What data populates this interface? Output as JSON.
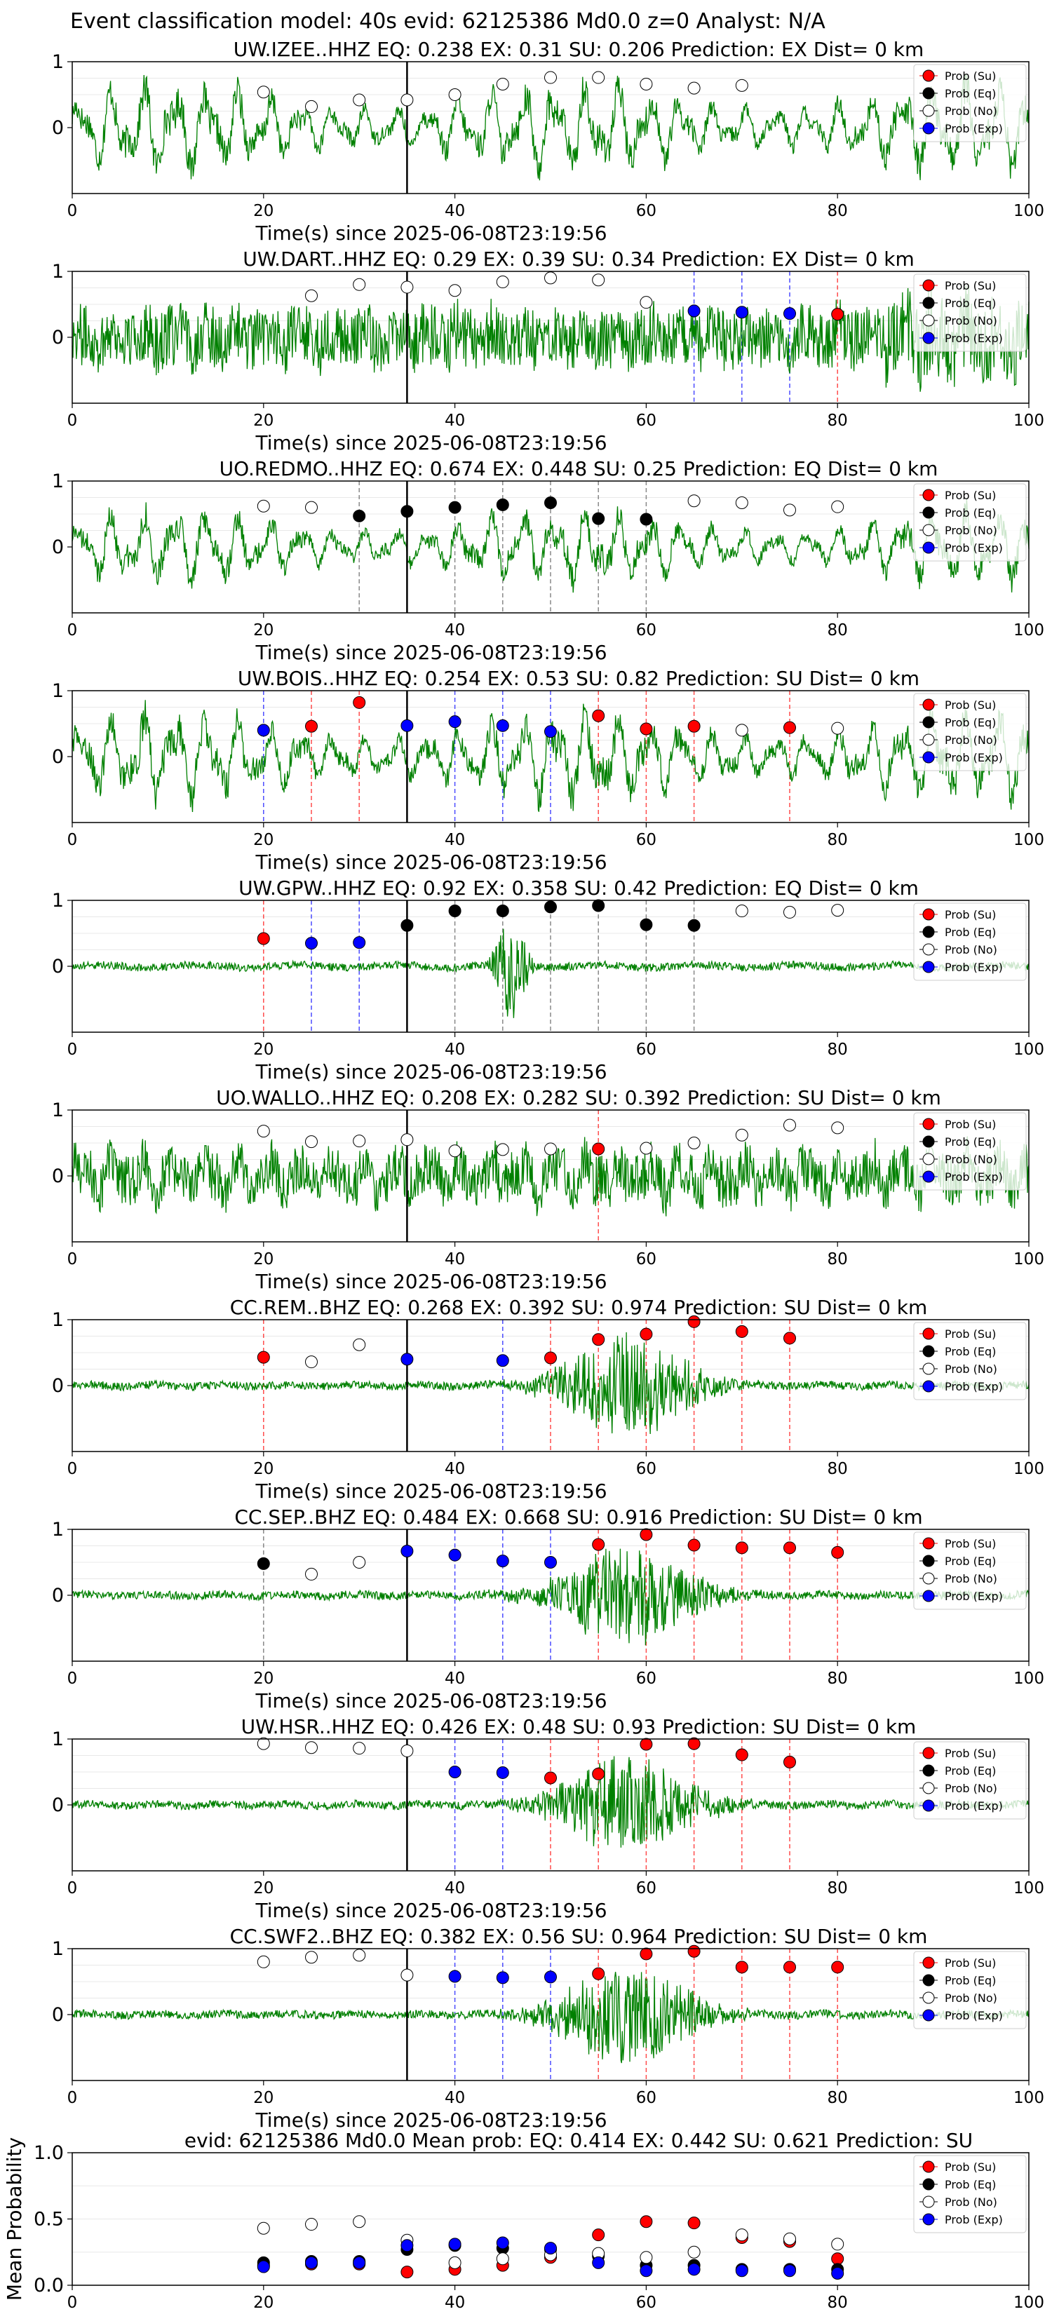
{
  "suptitle": "Event classification model: 40s evid: 62125386 Md0.0 z=0 Analyst: N/A",
  "legend_labels": [
    "Prob (Su)",
    "Prob (Eq)",
    "Prob (No)",
    "Prob (Exp)"
  ],
  "colors": {
    "su": "#ff0000",
    "eq": "#000000",
    "no": "#ffffff",
    "exp": "#0000ff",
    "wave": "#008000",
    "pick": "#000000"
  },
  "chart_data": [
    {
      "type": "scatter",
      "title": "UW.IZEE..HHZ   EQ: 0.238  EX: 0.31  SU: 0.206   Prediction: EX    Dist= 0 km",
      "xlabel": "Time(s) since 2025-06-08T23:19:56",
      "xlim": [
        0,
        100
      ],
      "ylim": [
        -1,
        1
      ],
      "x_ticks": [
        0,
        20,
        40,
        60,
        80,
        100
      ],
      "y_ticks": [
        0,
        1
      ],
      "pick_time": 35,
      "amplitude": "high",
      "trend": "low_freq",
      "points": [
        {
          "x": 20,
          "y": 0.54,
          "cls": "no"
        },
        {
          "x": 25,
          "y": 0.32,
          "cls": "no"
        },
        {
          "x": 30,
          "y": 0.42,
          "cls": "no"
        },
        {
          "x": 35,
          "y": 0.42,
          "cls": "no"
        },
        {
          "x": 40,
          "y": 0.5,
          "cls": "no"
        },
        {
          "x": 45,
          "y": 0.66,
          "cls": "no"
        },
        {
          "x": 50,
          "y": 0.76,
          "cls": "no"
        },
        {
          "x": 55,
          "y": 0.76,
          "cls": "no"
        },
        {
          "x": 60,
          "y": 0.66,
          "cls": "no"
        },
        {
          "x": 65,
          "y": 0.6,
          "cls": "no"
        },
        {
          "x": 70,
          "y": 0.64,
          "cls": "no"
        }
      ]
    },
    {
      "type": "scatter",
      "title": "UW.DART..HHZ   EQ: 0.29  EX: 0.39  SU: 0.34   Prediction: EX    Dist= 0 km",
      "xlabel": "Time(s) since 2025-06-08T23:19:56",
      "xlim": [
        0,
        100
      ],
      "ylim": [
        -1,
        1
      ],
      "x_ticks": [
        0,
        20,
        40,
        60,
        80,
        100
      ],
      "y_ticks": [
        0,
        1
      ],
      "pick_time": 35,
      "amplitude": "high",
      "trend": "high_freq",
      "points": [
        {
          "x": 25,
          "y": 0.63,
          "cls": "no"
        },
        {
          "x": 30,
          "y": 0.8,
          "cls": "no"
        },
        {
          "x": 35,
          "y": 0.76,
          "cls": "no"
        },
        {
          "x": 40,
          "y": 0.71,
          "cls": "no"
        },
        {
          "x": 45,
          "y": 0.84,
          "cls": "no"
        },
        {
          "x": 50,
          "y": 0.9,
          "cls": "no"
        },
        {
          "x": 55,
          "y": 0.87,
          "cls": "no"
        },
        {
          "x": 60,
          "y": 0.53,
          "cls": "no"
        },
        {
          "x": 65,
          "y": 0.4,
          "cls": "exp"
        },
        {
          "x": 70,
          "y": 0.38,
          "cls": "exp"
        },
        {
          "x": 75,
          "y": 0.36,
          "cls": "exp"
        },
        {
          "x": 80,
          "y": 0.35,
          "cls": "su"
        }
      ]
    },
    {
      "type": "scatter",
      "title": "UO.REDMO..HHZ   EQ: 0.674  EX: 0.448  SU: 0.25   Prediction: EQ    Dist= 0 km",
      "xlabel": "Time(s) since 2025-06-08T23:19:56",
      "xlim": [
        0,
        100
      ],
      "ylim": [
        -1,
        1
      ],
      "x_ticks": [
        0,
        20,
        40,
        60,
        80,
        100
      ],
      "y_ticks": [
        0,
        1
      ],
      "pick_time": 35,
      "amplitude": "med",
      "trend": "low_freq",
      "points": [
        {
          "x": 20,
          "y": 0.62,
          "cls": "no"
        },
        {
          "x": 25,
          "y": 0.6,
          "cls": "no"
        },
        {
          "x": 30,
          "y": 0.47,
          "cls": "eq"
        },
        {
          "x": 35,
          "y": 0.54,
          "cls": "eq"
        },
        {
          "x": 40,
          "y": 0.6,
          "cls": "eq"
        },
        {
          "x": 45,
          "y": 0.64,
          "cls": "eq"
        },
        {
          "x": 50,
          "y": 0.67,
          "cls": "eq"
        },
        {
          "x": 55,
          "y": 0.43,
          "cls": "eq"
        },
        {
          "x": 60,
          "y": 0.42,
          "cls": "eq"
        },
        {
          "x": 65,
          "y": 0.7,
          "cls": "no"
        },
        {
          "x": 70,
          "y": 0.67,
          "cls": "no"
        },
        {
          "x": 75,
          "y": 0.56,
          "cls": "no"
        },
        {
          "x": 80,
          "y": 0.61,
          "cls": "no"
        }
      ]
    },
    {
      "type": "scatter",
      "title": "UW.BOIS..HHZ   EQ: 0.254  EX: 0.53  SU: 0.82   Prediction: SU    Dist= 0 km",
      "xlabel": "Time(s) since 2025-06-08T23:19:56",
      "xlim": [
        0,
        100
      ],
      "ylim": [
        -1,
        1
      ],
      "x_ticks": [
        0,
        20,
        40,
        60,
        80,
        100
      ],
      "y_ticks": [
        0,
        1
      ],
      "pick_time": 35,
      "amplitude": "high",
      "trend": "low_freq",
      "points": [
        {
          "x": 20,
          "y": 0.4,
          "cls": "exp"
        },
        {
          "x": 25,
          "y": 0.46,
          "cls": "su"
        },
        {
          "x": 30,
          "y": 0.82,
          "cls": "su"
        },
        {
          "x": 35,
          "y": 0.47,
          "cls": "exp"
        },
        {
          "x": 40,
          "y": 0.53,
          "cls": "exp"
        },
        {
          "x": 45,
          "y": 0.47,
          "cls": "exp"
        },
        {
          "x": 50,
          "y": 0.38,
          "cls": "exp"
        },
        {
          "x": 55,
          "y": 0.62,
          "cls": "su"
        },
        {
          "x": 60,
          "y": 0.42,
          "cls": "su"
        },
        {
          "x": 65,
          "y": 0.46,
          "cls": "su"
        },
        {
          "x": 70,
          "y": 0.4,
          "cls": "no"
        },
        {
          "x": 75,
          "y": 0.44,
          "cls": "su"
        },
        {
          "x": 80,
          "y": 0.43,
          "cls": "no"
        }
      ]
    },
    {
      "type": "scatter",
      "title": "UW.GPW..HHZ   EQ: 0.92  EX: 0.358  SU: 0.42   Prediction: EQ    Dist= 0 km",
      "xlabel": "Time(s) since 2025-06-08T23:19:56",
      "xlim": [
        0,
        100
      ],
      "ylim": [
        -1,
        1
      ],
      "x_ticks": [
        0,
        20,
        40,
        60,
        80,
        100
      ],
      "y_ticks": [
        0,
        1
      ],
      "pick_time": 35,
      "amplitude": "low",
      "trend": "spike",
      "points": [
        {
          "x": 20,
          "y": 0.42,
          "cls": "su"
        },
        {
          "x": 25,
          "y": 0.35,
          "cls": "exp"
        },
        {
          "x": 30,
          "y": 0.36,
          "cls": "exp"
        },
        {
          "x": 35,
          "y": 0.62,
          "cls": "eq"
        },
        {
          "x": 40,
          "y": 0.84,
          "cls": "eq"
        },
        {
          "x": 45,
          "y": 0.84,
          "cls": "eq"
        },
        {
          "x": 50,
          "y": 0.9,
          "cls": "eq"
        },
        {
          "x": 55,
          "y": 0.92,
          "cls": "eq"
        },
        {
          "x": 60,
          "y": 0.63,
          "cls": "eq"
        },
        {
          "x": 65,
          "y": 0.62,
          "cls": "eq"
        },
        {
          "x": 70,
          "y": 0.84,
          "cls": "no"
        },
        {
          "x": 75,
          "y": 0.82,
          "cls": "no"
        },
        {
          "x": 80,
          "y": 0.85,
          "cls": "no"
        }
      ]
    },
    {
      "type": "scatter",
      "title": "UO.WALLO..HHZ   EQ: 0.208  EX: 0.282  SU: 0.392   Prediction: SU    Dist= 0 km",
      "xlabel": "Time(s) since 2025-06-08T23:19:56",
      "xlim": [
        0,
        100
      ],
      "ylim": [
        -1,
        1
      ],
      "x_ticks": [
        0,
        20,
        40,
        60,
        80,
        100
      ],
      "y_ticks": [
        0,
        1
      ],
      "pick_time": 35,
      "amplitude": "high",
      "trend": "noisy",
      "points": [
        {
          "x": 20,
          "y": 0.68,
          "cls": "no"
        },
        {
          "x": 25,
          "y": 0.52,
          "cls": "no"
        },
        {
          "x": 30,
          "y": 0.53,
          "cls": "no"
        },
        {
          "x": 35,
          "y": 0.55,
          "cls": "no"
        },
        {
          "x": 40,
          "y": 0.38,
          "cls": "no"
        },
        {
          "x": 45,
          "y": 0.4,
          "cls": "no"
        },
        {
          "x": 50,
          "y": 0.41,
          "cls": "no"
        },
        {
          "x": 55,
          "y": 0.41,
          "cls": "su"
        },
        {
          "x": 60,
          "y": 0.42,
          "cls": "no"
        },
        {
          "x": 65,
          "y": 0.5,
          "cls": "no"
        },
        {
          "x": 70,
          "y": 0.62,
          "cls": "no"
        },
        {
          "x": 75,
          "y": 0.77,
          "cls": "no"
        },
        {
          "x": 80,
          "y": 0.73,
          "cls": "no"
        }
      ]
    },
    {
      "type": "scatter",
      "title": "CC.REM..BHZ   EQ: 0.268  EX: 0.392  SU: 0.974   Prediction: SU    Dist= 0 km",
      "xlabel": "Time(s) since 2025-06-08T23:19:56",
      "xlim": [
        0,
        100
      ],
      "ylim": [
        -1,
        1
      ],
      "x_ticks": [
        0,
        20,
        40,
        60,
        80,
        100
      ],
      "y_ticks": [
        0,
        1
      ],
      "pick_time": 35,
      "amplitude": "low",
      "trend": "burst",
      "points": [
        {
          "x": 20,
          "y": 0.43,
          "cls": "su"
        },
        {
          "x": 25,
          "y": 0.36,
          "cls": "no"
        },
        {
          "x": 30,
          "y": 0.62,
          "cls": "no"
        },
        {
          "x": 35,
          "y": 0.4,
          "cls": "exp"
        },
        {
          "x": 45,
          "y": 0.38,
          "cls": "exp"
        },
        {
          "x": 50,
          "y": 0.42,
          "cls": "su"
        },
        {
          "x": 55,
          "y": 0.7,
          "cls": "su"
        },
        {
          "x": 60,
          "y": 0.78,
          "cls": "su"
        },
        {
          "x": 65,
          "y": 0.97,
          "cls": "su"
        },
        {
          "x": 70,
          "y": 0.82,
          "cls": "su"
        },
        {
          "x": 75,
          "y": 0.72,
          "cls": "su"
        }
      ]
    },
    {
      "type": "scatter",
      "title": "CC.SEP..BHZ   EQ: 0.484  EX: 0.668  SU: 0.916   Prediction: SU    Dist= 0 km",
      "xlabel": "Time(s) since 2025-06-08T23:19:56",
      "xlim": [
        0,
        100
      ],
      "ylim": [
        -1,
        1
      ],
      "x_ticks": [
        0,
        20,
        40,
        60,
        80,
        100
      ],
      "y_ticks": [
        0,
        1
      ],
      "pick_time": 35,
      "amplitude": "low",
      "trend": "burst",
      "points": [
        {
          "x": 20,
          "y": 0.48,
          "cls": "eq"
        },
        {
          "x": 25,
          "y": 0.32,
          "cls": "no"
        },
        {
          "x": 30,
          "y": 0.5,
          "cls": "no"
        },
        {
          "x": 35,
          "y": 0.67,
          "cls": "exp"
        },
        {
          "x": 40,
          "y": 0.61,
          "cls": "exp"
        },
        {
          "x": 45,
          "y": 0.52,
          "cls": "exp"
        },
        {
          "x": 50,
          "y": 0.5,
          "cls": "exp"
        },
        {
          "x": 55,
          "y": 0.77,
          "cls": "su"
        },
        {
          "x": 60,
          "y": 0.92,
          "cls": "su"
        },
        {
          "x": 65,
          "y": 0.76,
          "cls": "su"
        },
        {
          "x": 70,
          "y": 0.72,
          "cls": "su"
        },
        {
          "x": 75,
          "y": 0.72,
          "cls": "su"
        },
        {
          "x": 80,
          "y": 0.65,
          "cls": "su"
        }
      ]
    },
    {
      "type": "scatter",
      "title": "UW.HSR..HHZ   EQ: 0.426  EX: 0.48  SU: 0.93   Prediction: SU    Dist= 0 km",
      "xlabel": "Time(s) since 2025-06-08T23:19:56",
      "xlim": [
        0,
        100
      ],
      "ylim": [
        -1,
        1
      ],
      "x_ticks": [
        0,
        20,
        40,
        60,
        80,
        100
      ],
      "y_ticks": [
        0,
        1
      ],
      "pick_time": 35,
      "amplitude": "low",
      "trend": "burst",
      "points": [
        {
          "x": 20,
          "y": 0.93,
          "cls": "no"
        },
        {
          "x": 25,
          "y": 0.87,
          "cls": "no"
        },
        {
          "x": 30,
          "y": 0.86,
          "cls": "no"
        },
        {
          "x": 35,
          "y": 0.82,
          "cls": "no"
        },
        {
          "x": 40,
          "y": 0.5,
          "cls": "exp"
        },
        {
          "x": 45,
          "y": 0.49,
          "cls": "exp"
        },
        {
          "x": 50,
          "y": 0.41,
          "cls": "su"
        },
        {
          "x": 55,
          "y": 0.47,
          "cls": "su"
        },
        {
          "x": 60,
          "y": 0.92,
          "cls": "su"
        },
        {
          "x": 65,
          "y": 0.93,
          "cls": "su"
        },
        {
          "x": 70,
          "y": 0.76,
          "cls": "su"
        },
        {
          "x": 75,
          "y": 0.65,
          "cls": "su"
        }
      ]
    },
    {
      "type": "scatter",
      "title": "CC.SWF2..BHZ   EQ: 0.382  EX: 0.56  SU: 0.964   Prediction: SU    Dist= 0 km",
      "xlabel": "Time(s) since 2025-06-08T23:19:56",
      "xlim": [
        0,
        100
      ],
      "ylim": [
        -1,
        1
      ],
      "x_ticks": [
        0,
        20,
        40,
        60,
        80,
        100
      ],
      "y_ticks": [
        0,
        1
      ],
      "pick_time": 35,
      "amplitude": "low",
      "trend": "burst",
      "points": [
        {
          "x": 20,
          "y": 0.8,
          "cls": "no"
        },
        {
          "x": 25,
          "y": 0.87,
          "cls": "no"
        },
        {
          "x": 30,
          "y": 0.9,
          "cls": "no"
        },
        {
          "x": 35,
          "y": 0.6,
          "cls": "no"
        },
        {
          "x": 40,
          "y": 0.58,
          "cls": "exp"
        },
        {
          "x": 45,
          "y": 0.56,
          "cls": "exp"
        },
        {
          "x": 50,
          "y": 0.57,
          "cls": "exp"
        },
        {
          "x": 55,
          "y": 0.62,
          "cls": "su"
        },
        {
          "x": 60,
          "y": 0.92,
          "cls": "su"
        },
        {
          "x": 65,
          "y": 0.96,
          "cls": "su"
        },
        {
          "x": 70,
          "y": 0.72,
          "cls": "su"
        },
        {
          "x": 75,
          "y": 0.72,
          "cls": "su"
        },
        {
          "x": 80,
          "y": 0.72,
          "cls": "su"
        }
      ]
    },
    {
      "type": "scatter",
      "title": "evid: 62125386  Md0.0   Mean prob:   EQ: 0.414  EX: 0.442  SU: 0.621   Prediction: SU",
      "xlabel": "",
      "ylabel": "Mean Probability",
      "xlim": [
        0,
        100
      ],
      "ylim": [
        0,
        1
      ],
      "x_ticks": [
        0,
        20,
        40,
        60,
        80,
        100
      ],
      "y_ticks": [
        0.0,
        0.5,
        1.0
      ],
      "y_tick_labels": [
        "0.0",
        "0.5",
        "1.0"
      ],
      "series": [
        {
          "name": "Prob (Su)",
          "cls": "su",
          "x": [
            20,
            25,
            30,
            35,
            40,
            45,
            50,
            55,
            60,
            65,
            70,
            75,
            80
          ],
          "y": [
            0.15,
            0.16,
            0.16,
            0.1,
            0.12,
            0.15,
            0.21,
            0.38,
            0.48,
            0.47,
            0.36,
            0.33,
            0.2
          ]
        },
        {
          "name": "Prob (Eq)",
          "cls": "eq",
          "x": [
            20,
            25,
            30,
            35,
            40,
            45,
            50,
            55,
            60,
            65,
            70,
            75,
            80
          ],
          "y": [
            0.17,
            0.18,
            0.18,
            0.27,
            0.3,
            0.28,
            0.27,
            0.22,
            0.15,
            0.15,
            0.12,
            0.12,
            0.12
          ]
        },
        {
          "name": "Prob (No)",
          "cls": "no",
          "x": [
            20,
            25,
            30,
            35,
            40,
            45,
            50,
            55,
            60,
            65,
            70,
            75,
            80
          ],
          "y": [
            0.43,
            0.46,
            0.48,
            0.34,
            0.17,
            0.2,
            0.23,
            0.24,
            0.21,
            0.25,
            0.38,
            0.35,
            0.31
          ]
        },
        {
          "name": "Prob (Exp)",
          "cls": "exp",
          "x": [
            20,
            25,
            30,
            35,
            40,
            45,
            50,
            55,
            60,
            65,
            70,
            75,
            80
          ],
          "y": [
            0.14,
            0.17,
            0.17,
            0.3,
            0.31,
            0.32,
            0.28,
            0.17,
            0.11,
            0.12,
            0.11,
            0.11,
            0.09
          ]
        }
      ]
    }
  ]
}
